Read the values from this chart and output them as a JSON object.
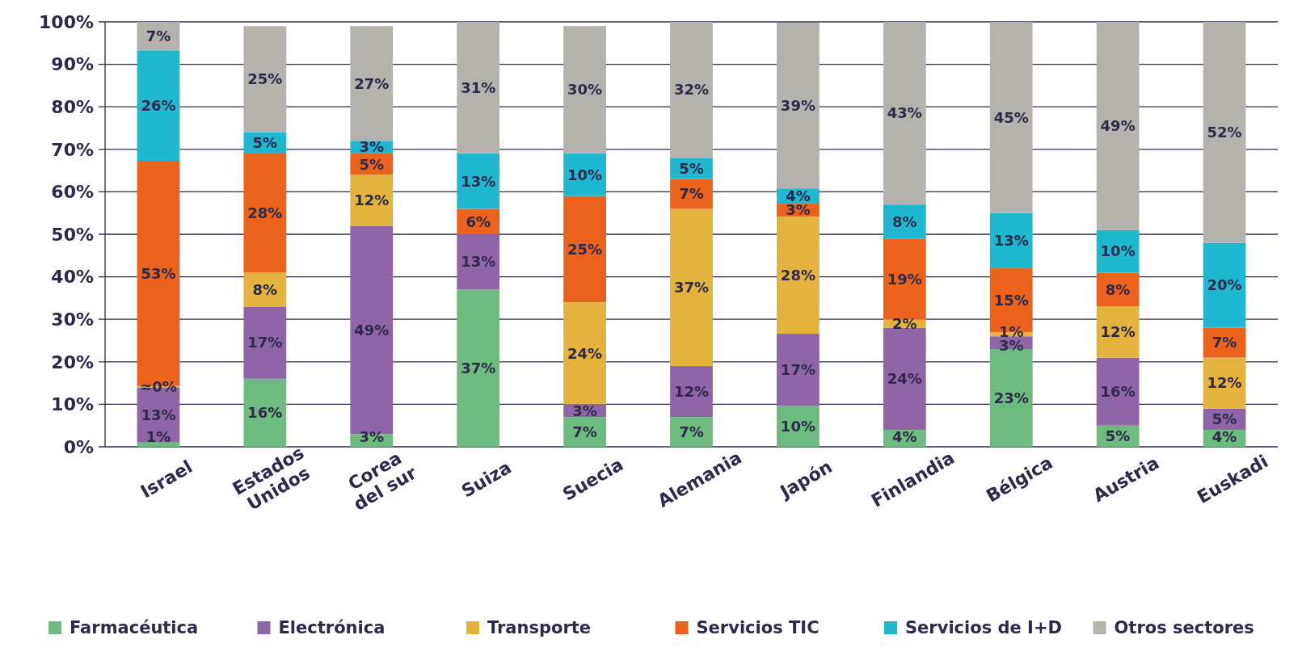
{
  "chart_data": {
    "type": "bar",
    "stacked": true,
    "categories": [
      "Israel",
      "Estados Unidos",
      "Corea del sur",
      "Suiza",
      "Suecia",
      "Alemania",
      "Japón",
      "Finlandia",
      "Bélgica",
      "Austria",
      "Euskadi"
    ],
    "ylim": [
      0,
      100
    ],
    "yticks": [
      {
        "value": 0,
        "label": "0%"
      },
      {
        "value": 10,
        "label": "10%"
      },
      {
        "value": 20,
        "label": "20%"
      },
      {
        "value": 30,
        "label": "30%"
      },
      {
        "value": 40,
        "label": "40%"
      },
      {
        "value": 50,
        "label": "50%"
      },
      {
        "value": 60,
        "label": "60%"
      },
      {
        "value": 70,
        "label": "70%"
      },
      {
        "value": 80,
        "label": "80%"
      },
      {
        "value": 90,
        "label": "90%"
      },
      {
        "value": 100,
        "label": "100%"
      }
    ],
    "grid": "y",
    "legend": "bottom",
    "series": [
      {
        "name": "Farmacéutica",
        "color": "#6dbb7f",
        "values": [
          1,
          16,
          3,
          37,
          7,
          7,
          9.6,
          4,
          23,
          5,
          4
        ],
        "value_labels": [
          "1%",
          "16%",
          "3%",
          "37%",
          "7%",
          "7%",
          "10%",
          "4%",
          "23%",
          "5%",
          "4%"
        ]
      },
      {
        "name": "Electrónica",
        "color": "#9065a8",
        "values": [
          13,
          17,
          49,
          13,
          3,
          12,
          17,
          24,
          3,
          16,
          5
        ],
        "value_labels": [
          "13%",
          "17%",
          "49%",
          "13%",
          "3%",
          "12%",
          "17%",
          "24%",
          "3%",
          "16%",
          "5%"
        ]
      },
      {
        "name": "Transporte",
        "color": "#e3b33d",
        "values": [
          0.3,
          8,
          12,
          0,
          24,
          37,
          27.6,
          2,
          1,
          12,
          12
        ],
        "value_labels": [
          "≈0%",
          "8%",
          "12%",
          null,
          "24%",
          "37%",
          "28%",
          "2%",
          "1%",
          "12%",
          "12%"
        ]
      },
      {
        "name": "Servicios TIC",
        "color": "#ea621c",
        "values": [
          53,
          28,
          5,
          6,
          25,
          7,
          3,
          19,
          15,
          8,
          7
        ],
        "value_labels": [
          "53%",
          "28%",
          "5%",
          "6%",
          "25%",
          "7%",
          "3%",
          "19%",
          "15%",
          "8%",
          "7%"
        ]
      },
      {
        "name": "Servicios de I+D",
        "color": "#1fb8d0",
        "values": [
          26,
          5,
          3,
          13,
          10,
          5,
          3.6,
          8,
          13,
          10,
          20
        ],
        "value_labels": [
          "26%",
          "5%",
          "3%",
          "13%",
          "10%",
          "5%",
          "4%",
          "8%",
          "13%",
          "10%",
          "20%"
        ]
      },
      {
        "name": "Otros sectores",
        "color": "#b3b2ad",
        "values": [
          6.7,
          25,
          27,
          31,
          30,
          32,
          39,
          43,
          45,
          49,
          52
        ],
        "value_labels": [
          "7%",
          "25%",
          "27%",
          "31%",
          "30%",
          "32%",
          "39%",
          "43%",
          "45%",
          "49%",
          "52%"
        ]
      }
    ]
  }
}
